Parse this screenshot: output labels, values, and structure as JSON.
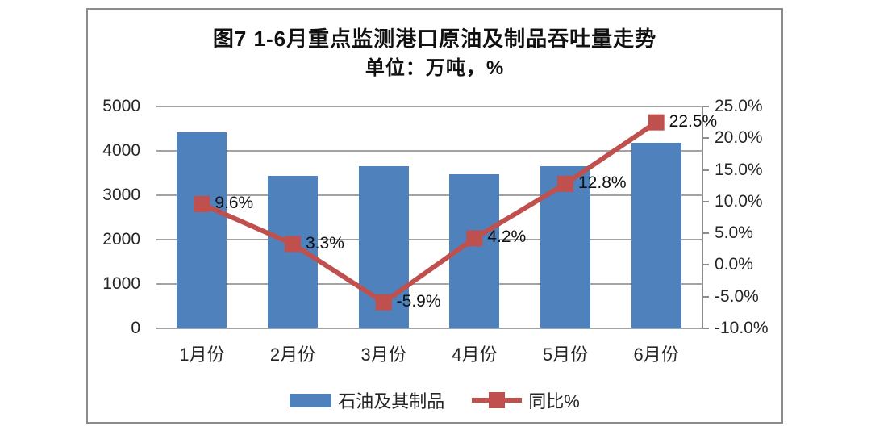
{
  "title": "图7  1-6月重点监测港口原油及制品吞吐量走势",
  "subtitle": "单位：万吨，%",
  "chart_data": {
    "type": "bar+line combo",
    "categories": [
      "1月份",
      "2月份",
      "3月份",
      "4月份",
      "5月份",
      "6月份"
    ],
    "series": [
      {
        "name": "石油及其制品",
        "type": "bar",
        "axis": "left",
        "values": [
          4420,
          3430,
          3650,
          3470,
          3650,
          4180
        ]
      },
      {
        "name": "同比%",
        "type": "line",
        "axis": "right",
        "values": [
          9.6,
          3.3,
          -5.9,
          4.2,
          12.8,
          22.5
        ],
        "point_labels": [
          "9.6%",
          "3.3%",
          "-5.9%",
          "4.2%",
          "12.8%",
          "22.5%"
        ]
      }
    ],
    "left_axis": {
      "min": 0,
      "max": 5000,
      "step": 1000,
      "tick_labels": [
        "0",
        "1000",
        "2000",
        "3000",
        "4000",
        "5000"
      ]
    },
    "right_axis": {
      "min": -10,
      "max": 25,
      "step": 5,
      "tick_labels": [
        "-10.0%",
        "-5.0%",
        "0.0%",
        "5.0%",
        "10.0%",
        "15.0%",
        "20.0%",
        "25.0%"
      ]
    },
    "grid": true,
    "legend_position": "bottom"
  },
  "legend": {
    "items": [
      {
        "label": "石油及其制品",
        "swatch": "bar"
      },
      {
        "label": "同比%",
        "swatch": "line-marker"
      }
    ]
  },
  "colors": {
    "bar": "#4f81bd",
    "line": "#c0504d",
    "grid": "#a3a3a3",
    "axis": "#8c8c8c",
    "text": "#262626"
  }
}
